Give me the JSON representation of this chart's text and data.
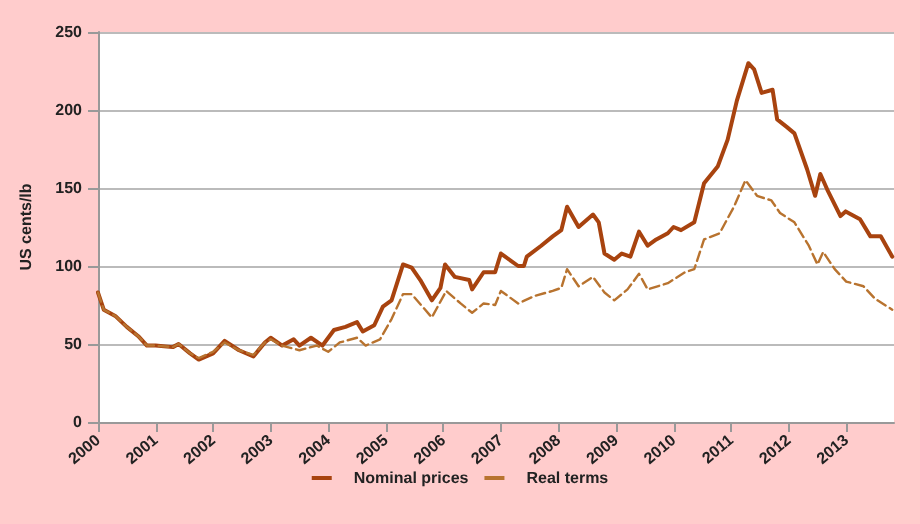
{
  "chart_data": {
    "type": "line",
    "ylabel": "US cents/lb",
    "xlim": [
      2000,
      2013.83
    ],
    "xticks": [
      2000,
      2001,
      2002,
      2003,
      2004,
      2005,
      2006,
      2007,
      2008,
      2009,
      2010,
      2011,
      2012,
      2013
    ],
    "ylim": [
      0,
      250
    ],
    "yticks": [
      0,
      50,
      100,
      150,
      200,
      250
    ],
    "grid": "y",
    "legend": "bottom",
    "marker": "none",
    "series": [
      {
        "name": "Nominal prices",
        "color": "#a8430f",
        "line_style": "solid",
        "x": [
          2000.0,
          2000.1,
          2000.3,
          2000.5,
          2000.7,
          2000.85,
          2001.0,
          2001.3,
          2001.4,
          2001.6,
          2001.75,
          2002.0,
          2002.2,
          2002.45,
          2002.7,
          2002.9,
          2003.0,
          2003.2,
          2003.4,
          2003.5,
          2003.7,
          2003.9,
          2004.1,
          2004.3,
          2004.5,
          2004.6,
          2004.8,
          2004.95,
          2005.1,
          2005.3,
          2005.45,
          2005.6,
          2005.8,
          2005.95,
          2006.03,
          2006.2,
          2006.45,
          2006.5,
          2006.7,
          2006.9,
          2007.0,
          2007.3,
          2007.4,
          2007.45,
          2007.7,
          2007.9,
          2008.05,
          2008.15,
          2008.35,
          2008.6,
          2008.7,
          2008.8,
          2008.97,
          2009.1,
          2009.25,
          2009.4,
          2009.55,
          2009.7,
          2009.9,
          2010.0,
          2010.13,
          2010.36,
          2010.53,
          2010.77,
          2010.94,
          2011.1,
          2011.3,
          2011.4,
          2011.53,
          2011.72,
          2011.8,
          2011.97,
          2012.1,
          2012.32,
          2012.46,
          2012.55,
          2012.67,
          2012.9,
          2012.99,
          2013.24,
          2013.42,
          2013.6,
          2013.8
        ],
        "values": [
          83,
          72,
          68,
          61,
          55,
          49,
          49,
          48,
          50,
          44,
          40,
          44,
          52,
          46,
          42,
          51,
          54,
          49,
          53,
          49,
          54,
          49,
          59,
          61,
          64,
          58,
          62,
          74,
          78,
          101,
          99,
          91,
          78,
          86,
          101,
          93,
          91,
          85,
          96,
          96,
          108,
          100,
          100,
          106,
          113,
          119,
          123,
          138,
          125,
          133,
          128,
          108,
          104,
          108,
          106,
          122,
          113,
          117,
          121,
          125,
          123,
          128,
          153,
          164,
          181,
          206,
          230,
          226,
          211,
          213,
          194,
          189,
          185,
          162,
          145,
          159,
          149,
          132,
          135,
          130,
          119,
          119,
          106
        ]
      },
      {
        "name": "Real terms",
        "color": "#b8732f",
        "line_style": "dashed",
        "x": [
          2000.0,
          2000.1,
          2000.3,
          2000.5,
          2000.7,
          2000.85,
          2001.0,
          2001.3,
          2001.4,
          2001.6,
          2001.75,
          2002.0,
          2002.2,
          2002.45,
          2002.7,
          2002.9,
          2003.0,
          2003.2,
          2003.5,
          2003.8,
          2004.0,
          2004.2,
          2004.5,
          2004.65,
          2004.9,
          2005.1,
          2005.3,
          2005.45,
          2005.8,
          2006.05,
          2006.3,
          2006.5,
          2006.7,
          2006.9,
          2007.0,
          2007.3,
          2007.6,
          2007.9,
          2008.05,
          2008.15,
          2008.35,
          2008.6,
          2008.8,
          2008.97,
          2009.2,
          2009.4,
          2009.55,
          2009.9,
          2010.2,
          2010.36,
          2010.53,
          2010.8,
          2011.05,
          2011.25,
          2011.45,
          2011.7,
          2011.85,
          2012.1,
          2012.35,
          2012.5,
          2012.6,
          2012.8,
          2013.0,
          2013.3,
          2013.5,
          2013.8
        ],
        "values": [
          83,
          72,
          68,
          61,
          55,
          49,
          49,
          48,
          50,
          44,
          41,
          45,
          51,
          46,
          43,
          51,
          53,
          49,
          46,
          49,
          45,
          51,
          54,
          49,
          53,
          66,
          82,
          82,
          67,
          84,
          76,
          70,
          76,
          75,
          84,
          76,
          81,
          84,
          86,
          98,
          87,
          93,
          83,
          78,
          85,
          95,
          85,
          89,
          96,
          98,
          117,
          121,
          138,
          155,
          145,
          142,
          134,
          128,
          113,
          101,
          109,
          98,
          90,
          87,
          79,
          72
        ]
      }
    ]
  }
}
